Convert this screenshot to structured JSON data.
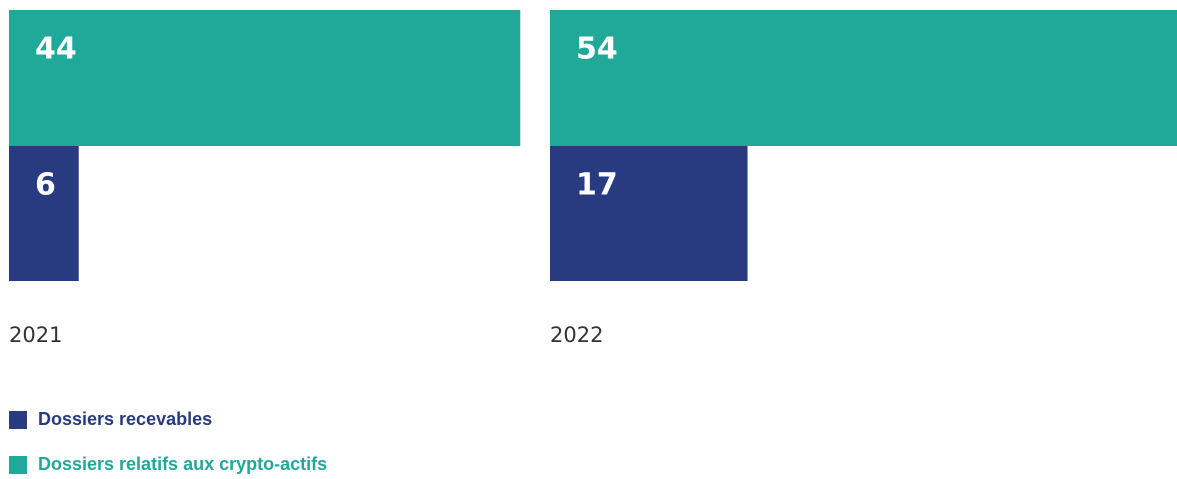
{
  "chart_data": {
    "type": "bar",
    "categories": [
      "2021",
      "2022"
    ],
    "series": [
      {
        "name": "Dossiers recevables",
        "color": "#283a80",
        "values": [
          6,
          17
        ]
      },
      {
        "name": "Dossiers relatifs aux crypto-actifs",
        "color": "#20a898",
        "values": [
          44,
          54
        ]
      }
    ]
  }
}
